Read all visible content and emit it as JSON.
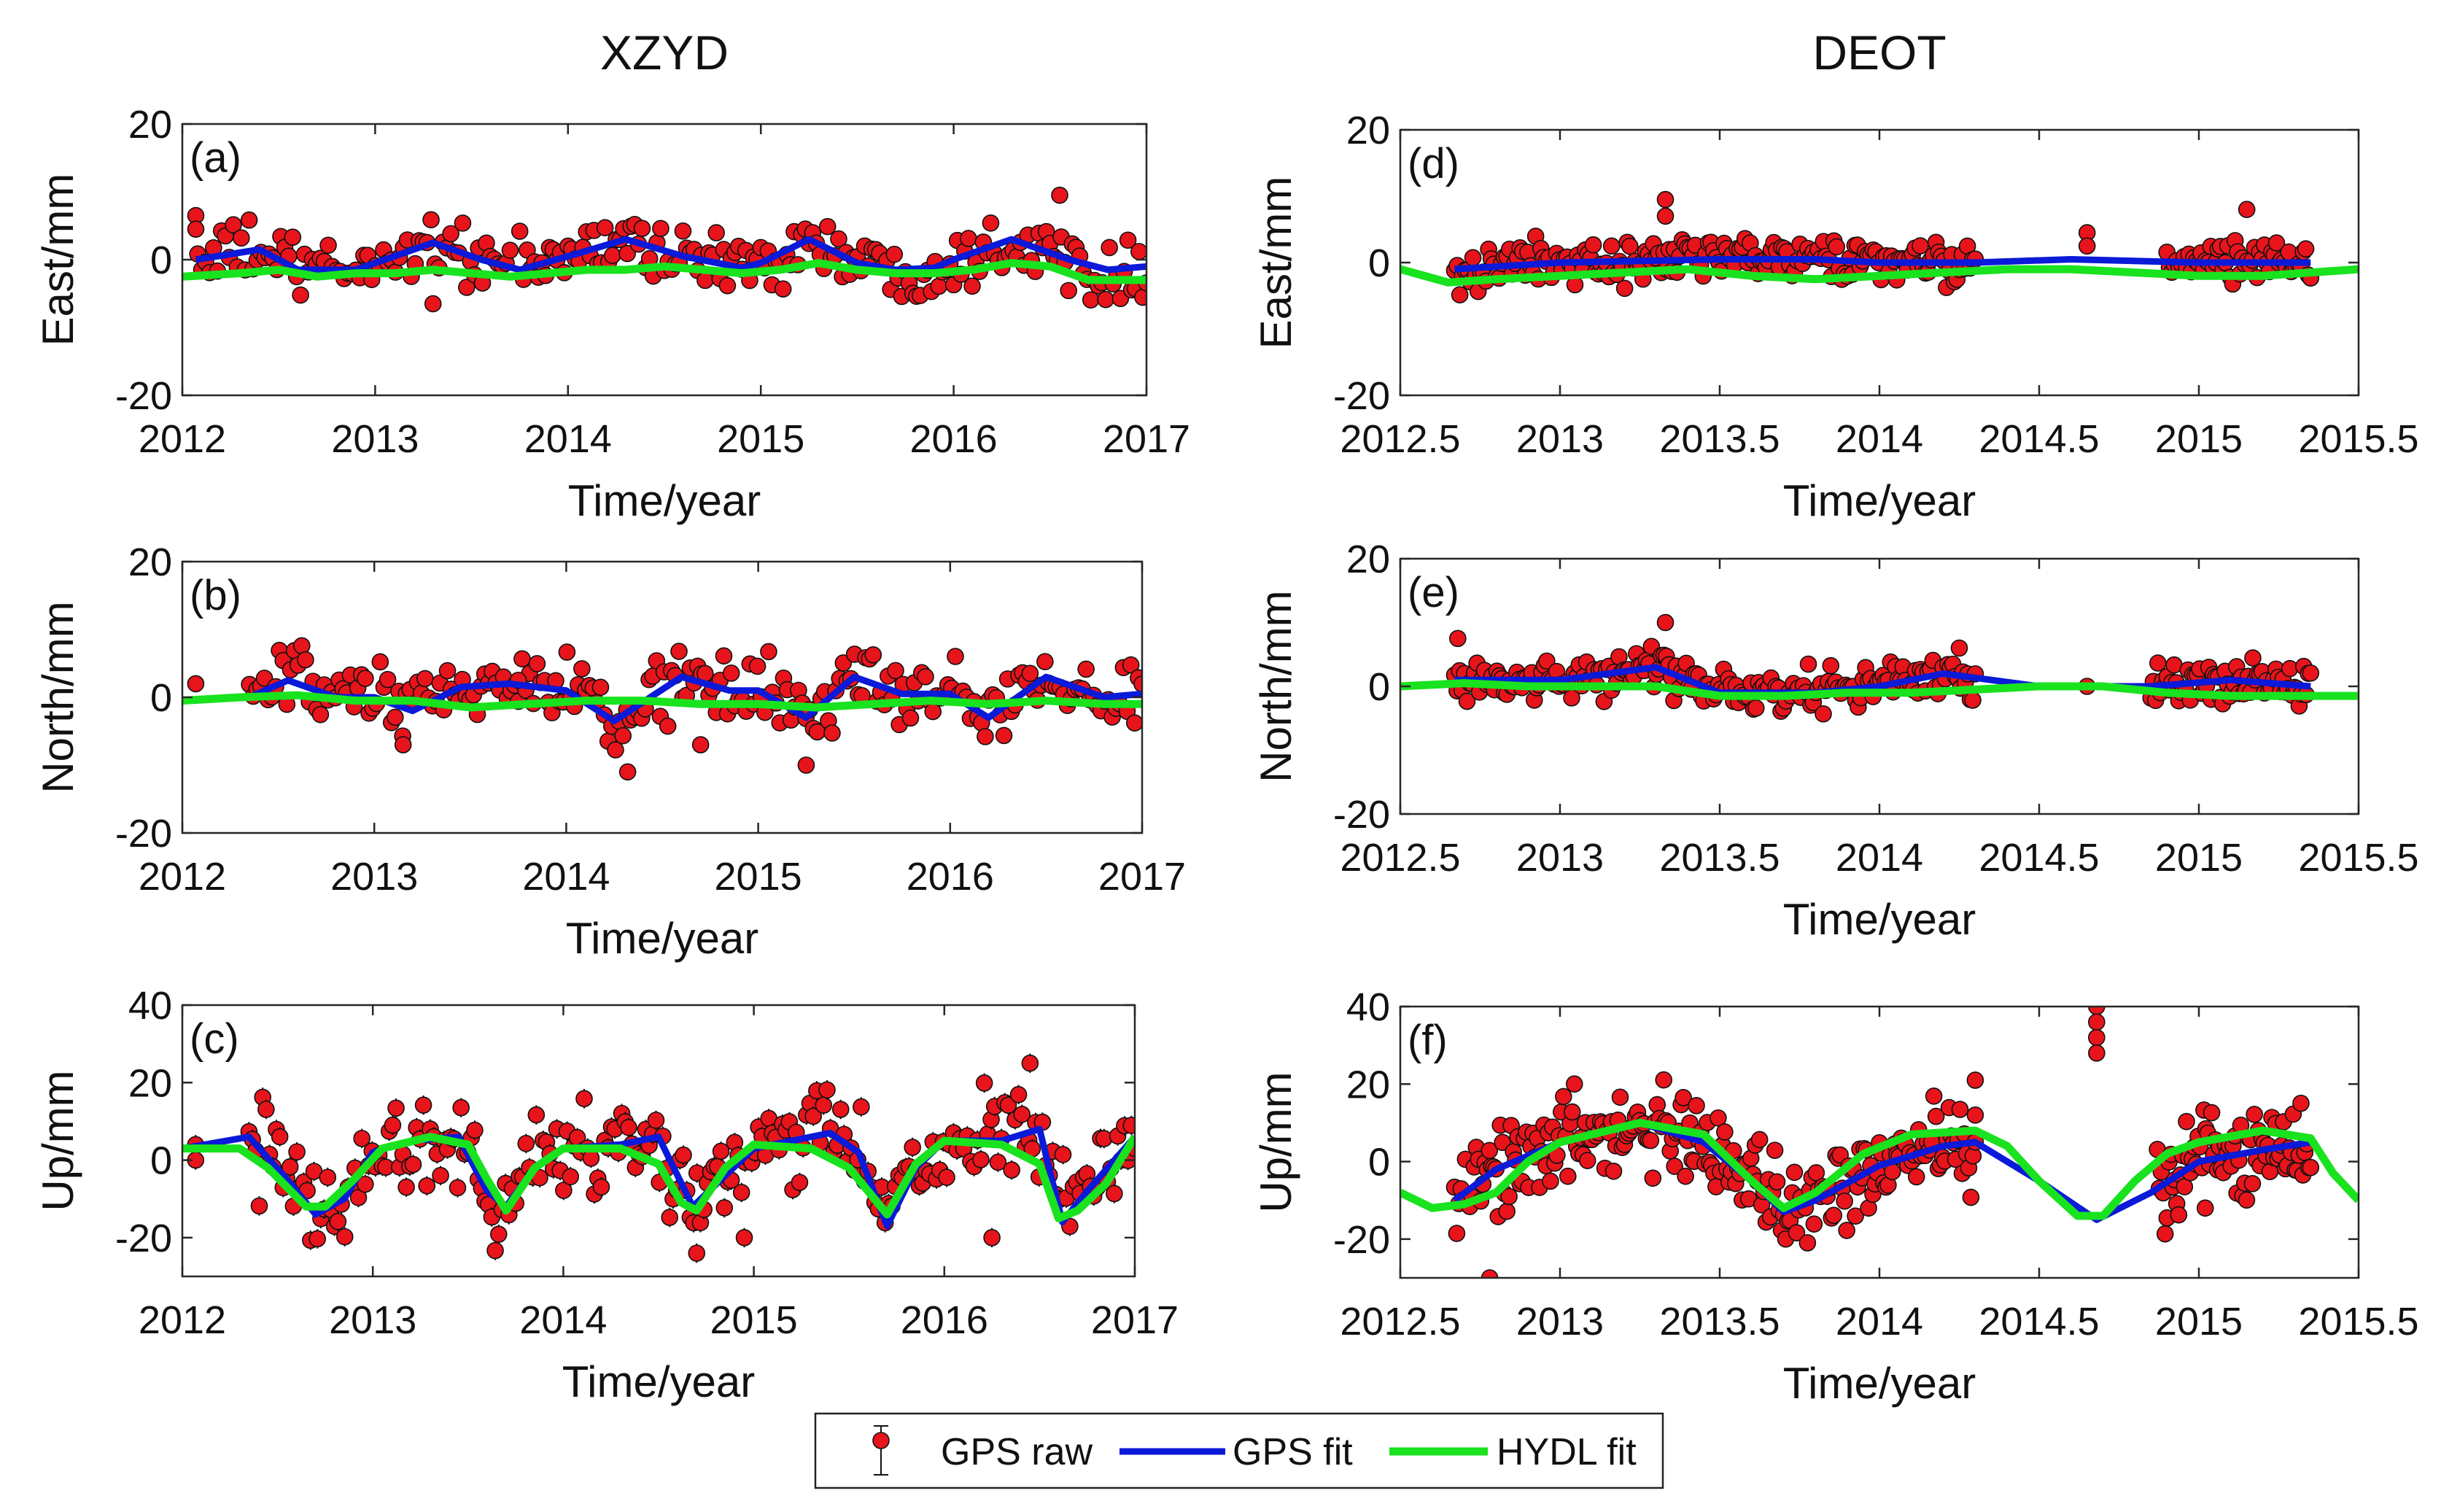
{
  "legend": {
    "raw_label": "GPS raw",
    "gps_fit_label": "GPS fit",
    "hydl_fit_label": "HYDL fit"
  },
  "colors": {
    "raw": "#e8141b",
    "gps_fit": "#0a1ad8",
    "hydl_fit": "#19e21f",
    "axes": "#262626"
  },
  "chart_data": [
    {
      "id": "a",
      "type": "scatter",
      "station_title": "XZYD",
      "panel_label": "(a)",
      "xlabel": "Time/year",
      "ylabel": "East/mm",
      "xlim": [
        2012,
        2017
      ],
      "ylim": [
        -20,
        20
      ],
      "xticks": [
        2012,
        2013,
        2014,
        2015,
        2016,
        2017
      ],
      "xtick_labels": [
        "2012",
        "2013",
        "2014",
        "2015",
        "2016",
        "2017"
      ],
      "yticks": [
        -20,
        0,
        20
      ],
      "ytick_labels": [
        "-20",
        "0",
        "20"
      ],
      "raw": {
        "amp": 3,
        "noise": 2.2,
        "errbar": 1.2,
        "segments": [
          [
            2012.08,
            2013.7,
            80
          ],
          [
            2013.75,
            2017.0,
            170
          ]
        ],
        "outliers": [
          [
            2012.07,
            6.5
          ],
          [
            2012.07,
            4.5
          ],
          [
            2016.55,
            9.5
          ],
          [
            2013.3,
            -6.5
          ]
        ]
      },
      "gps_fit": {
        "x": [
          2012.07,
          2012.4,
          2012.6,
          2012.9,
          2013.0,
          2013.3,
          2013.55,
          2013.75,
          2014.0,
          2014.3,
          2014.6,
          2014.9,
          2015.0,
          2015.25,
          2015.5,
          2015.7,
          2015.9,
          2016.0,
          2016.3,
          2016.6,
          2016.8,
          2017.0
        ],
        "y": [
          0,
          1.5,
          -1.5,
          -1.5,
          -0.5,
          2.5,
          0,
          -1.5,
          0.5,
          3,
          0.5,
          -1.2,
          -0.5,
          3,
          -0.5,
          -1.5,
          -1.2,
          0,
          3,
          0,
          -1.5,
          -1
        ]
      },
      "hydl_fit": {
        "x": [
          2012.0,
          2012.3,
          2012.5,
          2012.7,
          2012.9,
          2013.1,
          2013.3,
          2013.5,
          2013.7,
          2013.9,
          2014.1,
          2014.3,
          2014.5,
          2014.7,
          2014.9,
          2015.1,
          2015.3,
          2015.5,
          2015.7,
          2015.9,
          2016.1,
          2016.3,
          2016.5,
          2016.7,
          2016.9,
          2017.0
        ],
        "y": [
          -2.5,
          -2,
          -1.5,
          -2.5,
          -2,
          -2,
          -1.5,
          -2,
          -2.5,
          -2,
          -1.5,
          -1.5,
          -1,
          -1.5,
          -2,
          -1.5,
          -0.5,
          -1.5,
          -2,
          -2,
          -1.5,
          -0.5,
          -1,
          -3,
          -3,
          -3
        ]
      }
    },
    {
      "id": "b",
      "type": "scatter",
      "station_title": "",
      "panel_label": "(b)",
      "xlabel": "Time/year",
      "ylabel": "North/mm",
      "xlim": [
        2012,
        2017
      ],
      "ylim": [
        -20,
        20
      ],
      "xticks": [
        2012,
        2013,
        2014,
        2015,
        2016,
        2017
      ],
      "xtick_labels": [
        "2012",
        "2013",
        "2014",
        "2015",
        "2016",
        "2017"
      ],
      "yticks": [
        -20,
        0,
        20
      ],
      "ytick_labels": [
        "-20",
        "0",
        "20"
      ],
      "raw": {
        "amp": 3,
        "noise": 2.5,
        "errbar": 1.2,
        "segments": [
          [
            2012.35,
            2017.0,
            240
          ]
        ],
        "outliers": [
          [
            2012.07,
            2
          ],
          [
            2013.75,
            2.5
          ],
          [
            2014.32,
            -11
          ],
          [
            2015.25,
            -10
          ],
          [
            2014.7,
            -7
          ],
          [
            2013.15,
            -7
          ]
        ]
      },
      "gps_fit": {
        "x": [
          2012.35,
          2012.55,
          2012.8,
          2013.0,
          2013.2,
          2013.45,
          2013.7,
          2014.0,
          2014.25,
          2014.6,
          2014.85,
          2015.0,
          2015.25,
          2015.5,
          2015.75,
          2016.0,
          2016.2,
          2016.5,
          2016.8,
          2017.0
        ],
        "y": [
          0,
          2.5,
          0,
          0,
          -2,
          1.5,
          2,
          1,
          -3.5,
          3,
          1,
          1,
          -3,
          3,
          0.5,
          0.5,
          -3,
          3,
          0,
          0.5
        ]
      },
      "hydl_fit": {
        "x": [
          2012.0,
          2012.3,
          2012.6,
          2012.9,
          2013.2,
          2013.5,
          2013.8,
          2014.1,
          2014.4,
          2014.7,
          2015.0,
          2015.3,
          2015.6,
          2015.9,
          2016.2,
          2016.5,
          2016.8,
          2017.0
        ],
        "y": [
          -0.5,
          0,
          0.3,
          -0.5,
          -0.5,
          -1.5,
          -1,
          -0.5,
          -0.5,
          -1,
          -1,
          -1.5,
          -1,
          -0.5,
          -1,
          -0.5,
          -1,
          -1
        ]
      }
    },
    {
      "id": "c",
      "type": "scatter",
      "station_title": "",
      "panel_label": "(c)",
      "xlabel": "Time/year",
      "ylabel": "Up/mm",
      "xlim": [
        2012,
        2017
      ],
      "ylim": [
        -30,
        40
      ],
      "xticks": [
        2012,
        2013,
        2014,
        2015,
        2016,
        2017
      ],
      "xtick_labels": [
        "2012",
        "2013",
        "2014",
        "2015",
        "2016",
        "2017"
      ],
      "yticks": [
        -20,
        0,
        20,
        40
      ],
      "ytick_labels": [
        "-20",
        "0",
        "20",
        "40"
      ],
      "raw": {
        "amp": 4,
        "noise": 6,
        "errbar": 2.5,
        "segments": [
          [
            2012.35,
            2017.0,
            260
          ]
        ],
        "outliers": [
          [
            2012.07,
            4
          ],
          [
            2012.07,
            0
          ],
          [
            2016.45,
            25
          ],
          [
            2016.25,
            -20
          ],
          [
            2014.7,
            -24
          ],
          [
            2014.95,
            -20
          ]
        ]
      },
      "gps_fit": {
        "x": [
          2012.0,
          2012.35,
          2012.55,
          2012.7,
          2012.85,
          2013.0,
          2013.2,
          2013.45,
          2013.6,
          2013.7,
          2013.85,
          2014.0,
          2014.3,
          2014.5,
          2014.68,
          2014.85,
          2015.0,
          2015.2,
          2015.4,
          2015.55,
          2015.7,
          2015.85,
          2016.0,
          2016.3,
          2016.5,
          2016.62,
          2016.75,
          2017.0
        ],
        "y": [
          3,
          6,
          -5,
          -14,
          -10,
          2,
          5,
          6,
          -8,
          -12,
          -2,
          3,
          4,
          6,
          -12,
          -4,
          3,
          5,
          7,
          2,
          -17,
          -2,
          5,
          5,
          8,
          -16,
          -8,
          6
        ]
      },
      "hydl_fit": {
        "x": [
          2012.0,
          2012.3,
          2012.45,
          2012.65,
          2012.75,
          2012.9,
          2013.05,
          2013.3,
          2013.5,
          2013.6,
          2013.7,
          2013.85,
          2014.0,
          2014.3,
          2014.5,
          2014.62,
          2014.7,
          2014.85,
          2015.0,
          2015.3,
          2015.5,
          2015.6,
          2015.7,
          2015.85,
          2016.0,
          2016.3,
          2016.5,
          2016.6,
          2016.7,
          2016.85,
          2017.0
        ],
        "y": [
          3,
          3,
          -2,
          -12,
          -12,
          -5,
          3,
          6,
          4,
          -5,
          -13,
          -2,
          3,
          3,
          -1,
          -11,
          -13,
          -2,
          4,
          3,
          -2,
          -8,
          -14,
          -1,
          5,
          4,
          -1,
          -15,
          -13,
          -6,
          6
        ]
      }
    },
    {
      "id": "d",
      "type": "scatter",
      "station_title": "DEOT",
      "panel_label": "(d)",
      "xlabel": "Time/year",
      "ylabel": "East/mm",
      "xlim": [
        2012.5,
        2015.5
      ],
      "ylim": [
        -20,
        20
      ],
      "xticks": [
        2012.5,
        2013,
        2013.5,
        2014,
        2014.5,
        2015,
        2015.5
      ],
      "xtick_labels": [
        "2012.5",
        "2013",
        "2013.5",
        "2014",
        "2014.5",
        "2015",
        "2015.5"
      ],
      "yticks": [
        -20,
        0,
        20
      ],
      "ytick_labels": [
        "-20",
        "0",
        "20"
      ],
      "raw": {
        "amp": 1,
        "noise": 1.6,
        "errbar": 1,
        "segments": [
          [
            2012.67,
            2014.3,
            200
          ],
          [
            2014.9,
            2015.35,
            60
          ]
        ],
        "outliers": [
          [
            2013.33,
            9.5
          ],
          [
            2013.33,
            7
          ],
          [
            2015.15,
            8
          ],
          [
            2014.65,
            4.5
          ],
          [
            2014.65,
            2.5
          ]
        ]
      },
      "gps_fit": {
        "x": [
          2012.67,
          2013.0,
          2013.5,
          2013.8,
          2014.0,
          2014.3,
          2014.6,
          2015.0,
          2015.35
        ],
        "y": [
          -1,
          0,
          0.5,
          0.5,
          0,
          0,
          0.5,
          0,
          0
        ]
      },
      "hydl_fit": {
        "x": [
          2012.5,
          2012.65,
          2012.8,
          2013.0,
          2013.2,
          2013.4,
          2013.6,
          2013.8,
          2014.0,
          2014.2,
          2014.4,
          2014.6,
          2014.8,
          2015.0,
          2015.2,
          2015.5
        ],
        "y": [
          -1,
          -3,
          -2.5,
          -2,
          -1.5,
          -1,
          -2,
          -2.5,
          -2,
          -1.5,
          -1,
          -1,
          -1.5,
          -2,
          -2,
          -1
        ]
      }
    },
    {
      "id": "e",
      "type": "scatter",
      "station_title": "",
      "panel_label": "(e)",
      "xlabel": "Time/year",
      "ylabel": "North/mm",
      "xlim": [
        2012.5,
        2015.5
      ],
      "ylim": [
        -20,
        20
      ],
      "xticks": [
        2012.5,
        2013,
        2013.5,
        2014,
        2014.5,
        2015,
        2015.5
      ],
      "xtick_labels": [
        "2012.5",
        "2013",
        "2013.5",
        "2014",
        "2014.5",
        "2015",
        "2015.5"
      ],
      "yticks": [
        -20,
        0,
        20
      ],
      "ytick_labels": [
        "-20",
        "0",
        "20"
      ],
      "raw": {
        "amp": 1,
        "noise": 1.8,
        "errbar": 1,
        "segments": [
          [
            2012.67,
            2014.3,
            210
          ],
          [
            2014.85,
            2015.35,
            70
          ]
        ],
        "outliers": [
          [
            2012.68,
            7.5
          ],
          [
            2013.33,
            10
          ],
          [
            2014.25,
            6
          ],
          [
            2014.65,
            0
          ]
        ]
      },
      "gps_fit": {
        "x": [
          2012.67,
          2013.0,
          2013.3,
          2013.5,
          2013.8,
          2014.0,
          2014.2,
          2014.5,
          2014.85,
          2015.1,
          2015.35
        ],
        "y": [
          1,
          1,
          3,
          -1,
          -1,
          0,
          2,
          0,
          0,
          1,
          0
        ]
      },
      "hydl_fit": {
        "x": [
          2012.5,
          2012.7,
          2012.9,
          2013.1,
          2013.3,
          2013.5,
          2013.7,
          2013.9,
          2014.1,
          2014.3,
          2014.5,
          2014.7,
          2014.9,
          2015.1,
          2015.3,
          2015.5
        ],
        "y": [
          0,
          0.5,
          0,
          0,
          0,
          -1.5,
          -1.5,
          -1,
          -1,
          -0.5,
          0,
          0,
          -1,
          -1.5,
          -1.5,
          -1.5
        ]
      }
    },
    {
      "id": "f",
      "type": "scatter",
      "station_title": "",
      "panel_label": "(f)",
      "xlabel": "Time/year",
      "ylabel": "Up/mm",
      "xlim": [
        2012.5,
        2015.5
      ],
      "ylim": [
        -30,
        40
      ],
      "xticks": [
        2012.5,
        2013,
        2013.5,
        2014,
        2014.5,
        2015,
        2015.5
      ],
      "xtick_labels": [
        "2012.5",
        "2013",
        "2013.5",
        "2014",
        "2014.5",
        "2015",
        "2015.5"
      ],
      "yticks": [
        -20,
        0,
        20,
        40
      ],
      "ytick_labels": [
        "-20",
        "0",
        "20",
        "40"
      ],
      "raw": {
        "amp": 0,
        "noise": 5.5,
        "errbar": 2.2,
        "segments": [
          [
            2012.67,
            2014.3,
            240
          ],
          [
            2014.87,
            2015.35,
            80
          ]
        ],
        "outliers": [
          [
            2014.68,
            40
          ],
          [
            2014.68,
            36
          ],
          [
            2014.68,
            32
          ],
          [
            2014.68,
            28
          ],
          [
            2014.3,
            21
          ],
          [
            2014.3,
            12
          ],
          [
            2012.78,
            -30
          ],
          [
            2015.02,
            -12
          ]
        ]
      },
      "gps_fit": {
        "x": [
          2012.67,
          2012.8,
          2013.0,
          2013.25,
          2013.45,
          2013.6,
          2013.7,
          2013.8,
          2014.0,
          2014.2,
          2014.3,
          2014.5,
          2014.68,
          2014.85,
          2015.0,
          2015.2,
          2015.35
        ],
        "y": [
          -10,
          -2,
          5,
          10,
          5,
          -5,
          -13,
          -10,
          -1,
          4,
          5,
          -5,
          -15,
          -8,
          0,
          3,
          5
        ]
      },
      "hydl_fit": {
        "x": [
          2012.5,
          2012.6,
          2012.7,
          2012.8,
          2012.9,
          2013.0,
          2013.25,
          2013.45,
          2013.6,
          2013.7,
          2013.8,
          2013.95,
          2014.1,
          2014.3,
          2014.4,
          2014.5,
          2014.62,
          2014.7,
          2014.8,
          2014.9,
          2015.0,
          2015.2,
          2015.35,
          2015.42,
          2015.5
        ],
        "y": [
          -8,
          -12,
          -11,
          -8,
          0,
          5,
          10,
          7,
          -5,
          -12,
          -8,
          2,
          7,
          8,
          4,
          -5,
          -14,
          -14,
          -5,
          2,
          5,
          8,
          6,
          -3,
          -10
        ]
      }
    }
  ]
}
